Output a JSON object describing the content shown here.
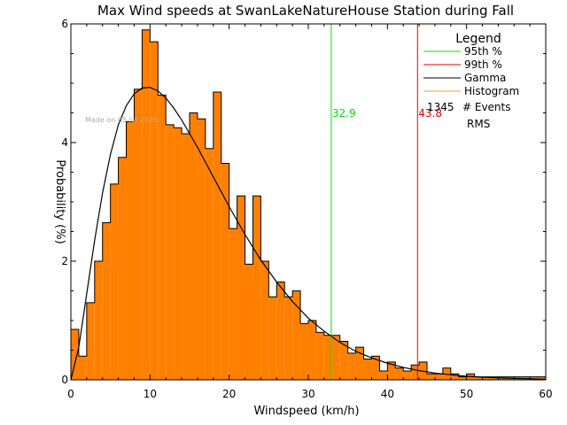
{
  "chart_data": {
    "type": "bar",
    "title": "Max Wind speeds at SwanLakeNatureHouse Station during Fall",
    "xlabel": "Windspeed (km/h)",
    "ylabel": "Probability  (%)",
    "xlim": [
      0,
      60
    ],
    "ylim": [
      0,
      6
    ],
    "xticks": [
      "0",
      "10",
      "20",
      "30",
      "40",
      "50",
      "60"
    ],
    "yticks": [
      "0",
      "2",
      "4",
      "6"
    ],
    "watermark": "Made on 05 Jul 2025",
    "colors": {
      "histogram": "#ff8000",
      "gamma": "#000000",
      "p95": "#00e000",
      "p99": "#e00000",
      "legend_histogram": "#e8a040"
    },
    "histogram": {
      "bin_width": 1,
      "x_start": 0,
      "values": [
        0.85,
        0.4,
        1.3,
        2.0,
        2.65,
        3.3,
        3.75,
        4.35,
        4.9,
        5.9,
        5.7,
        4.8,
        4.3,
        4.25,
        4.15,
        4.5,
        4.4,
        3.9,
        4.85,
        3.65,
        2.55,
        3.1,
        1.95,
        3.1,
        2.0,
        1.4,
        1.65,
        1.4,
        1.5,
        0.95,
        1.0,
        0.8,
        0.75,
        0.75,
        0.65,
        0.45,
        0.55,
        0.35,
        0.4,
        0.15,
        0.3,
        0.2,
        0.15,
        0.25,
        0.3,
        0.1,
        0.1,
        0.2,
        0.1,
        0.05,
        0.1,
        0.05,
        0.05,
        0.05,
        0.05,
        0.05,
        0.05,
        0.05,
        0.05,
        0.05
      ]
    },
    "gamma_curve": {
      "x": [
        0,
        1,
        2,
        3,
        4,
        5,
        6,
        7,
        8,
        9,
        10,
        11,
        12,
        13,
        14,
        16,
        18,
        20,
        22,
        24,
        26,
        28,
        30,
        32,
        34,
        36,
        38,
        40,
        42,
        44,
        46,
        48,
        50,
        52,
        55,
        60
      ],
      "y": [
        0,
        0.55,
        1.45,
        2.35,
        3.15,
        3.8,
        4.3,
        4.62,
        4.82,
        4.92,
        4.93,
        4.87,
        4.75,
        4.58,
        4.38,
        3.92,
        3.42,
        2.92,
        2.45,
        2.02,
        1.65,
        1.32,
        1.04,
        0.82,
        0.63,
        0.48,
        0.37,
        0.28,
        0.21,
        0.155,
        0.115,
        0.085,
        0.06,
        0.045,
        0.028,
        0.01
      ]
    },
    "percentiles": [
      {
        "name": "95th %",
        "value": 32.9,
        "label": "32.9",
        "color": "#00e000"
      },
      {
        "name": "99th %",
        "value": 43.8,
        "label": "43.8",
        "color": "#e00000"
      }
    ],
    "legend": {
      "title": "Legend",
      "placement": "top-right",
      "entries": [
        {
          "label": "95th %",
          "color": "#00e000"
        },
        {
          "label": "99th %",
          "color": "#e00000"
        },
        {
          "label": "Gamma",
          "color": "#000000"
        },
        {
          "label": "Histogram",
          "color": "#e8a040"
        }
      ],
      "events_count": "1345",
      "events_label": "# Events",
      "rms_label": "RMS"
    }
  }
}
